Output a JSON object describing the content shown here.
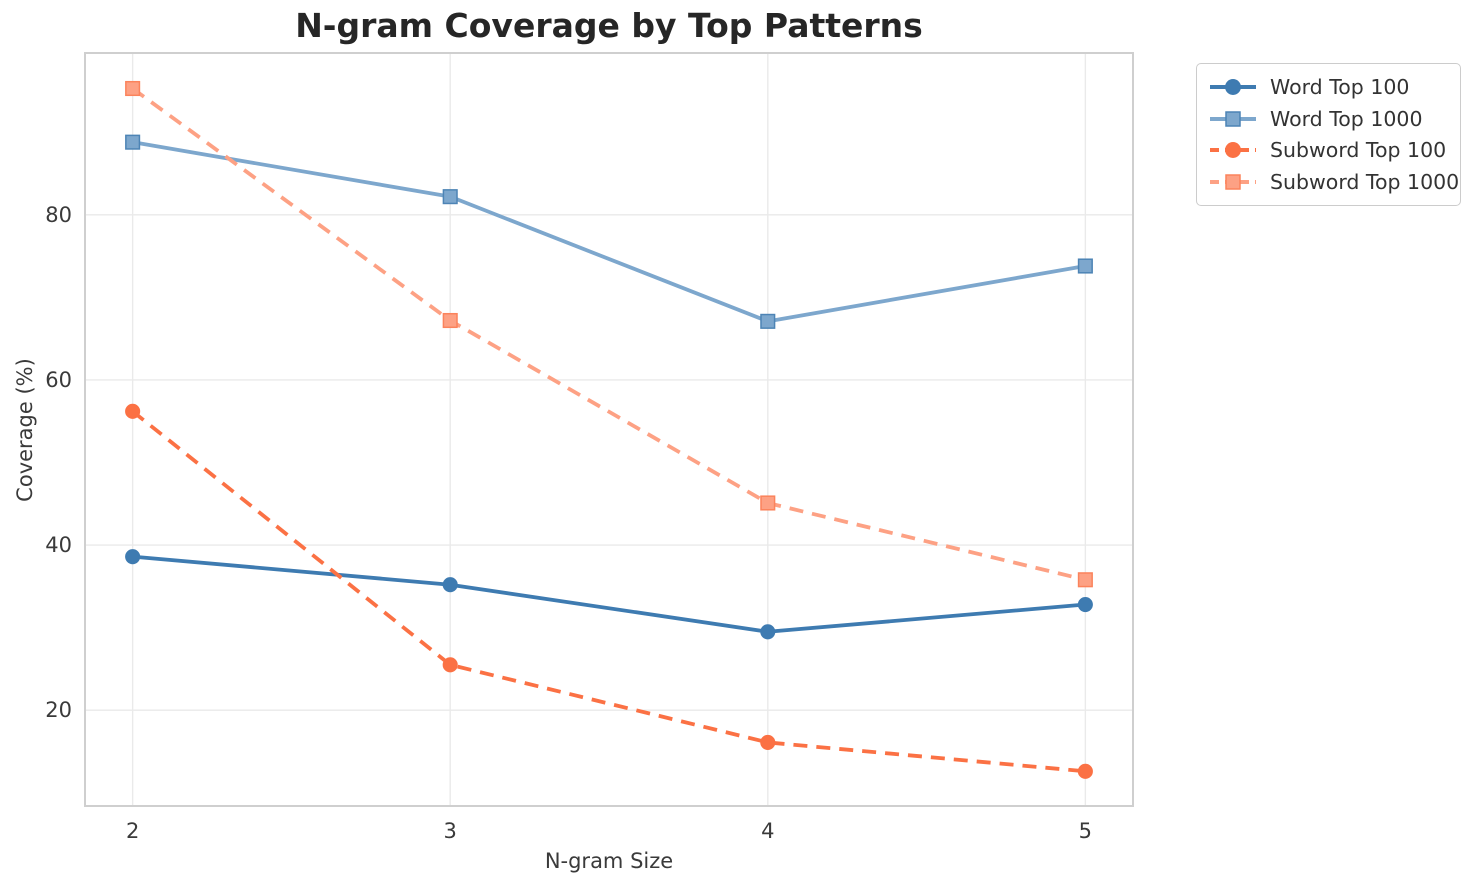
{
  "chart_data": {
    "type": "line",
    "title": "N-gram Coverage by Top Patterns",
    "xlabel": "N-gram Size",
    "ylabel": "Coverage (%)",
    "x": [
      2,
      3,
      4,
      5
    ],
    "xticks": [
      "2",
      "3",
      "4",
      "5"
    ],
    "yticks": [
      "20",
      "40",
      "60",
      "80"
    ],
    "ytick_values": [
      20,
      40,
      60,
      80
    ],
    "xlim": [
      1.85,
      5.15
    ],
    "ylim": [
      8.4,
      99.6
    ],
    "grid": true,
    "legend_position": "outside upper right",
    "series": [
      {
        "name": "Word Top 100",
        "marker": "circle",
        "line": "solid",
        "color": "#3e7bb1",
        "edge": "#3e7bb1",
        "values": [
          38.6,
          35.2,
          29.5,
          32.8
        ]
      },
      {
        "name": "Word Top 1000",
        "marker": "square",
        "line": "solid",
        "color": "#7da7cd",
        "edge": "#4d84b5",
        "values": [
          88.8,
          82.2,
          67.1,
          73.8
        ]
      },
      {
        "name": "Subword Top 100",
        "marker": "circle",
        "line": "dashed",
        "color": "#fb7144",
        "edge": "#fb7144",
        "values": [
          56.2,
          25.5,
          16.1,
          12.6
        ]
      },
      {
        "name": "Subword Top 1000",
        "marker": "square",
        "line": "dashed",
        "color": "#fda184",
        "edge": "#fb835c",
        "values": [
          95.3,
          67.2,
          45.1,
          35.8
        ]
      }
    ],
    "colors": {
      "background": "#ffffff",
      "grid": "#eaeaea",
      "spine": "#cfcfcf",
      "tick_text": "#3a3a3a",
      "title_text": "#262626"
    }
  }
}
